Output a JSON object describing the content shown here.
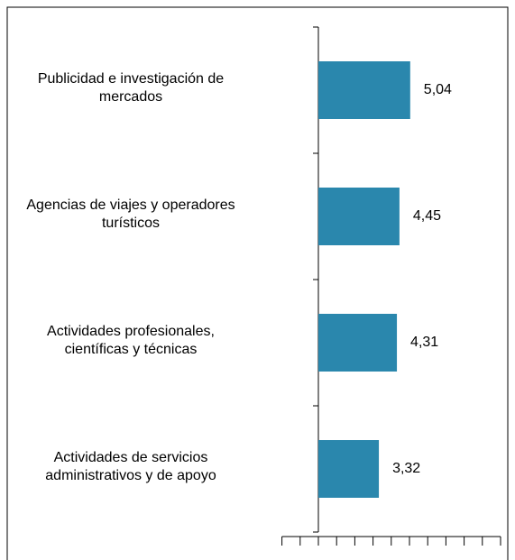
{
  "chart_data": {
    "type": "bar",
    "orientation": "horizontal",
    "categories": [
      "Publicidad e investigación de mercados",
      "Agencias de viajes y operadores turísticos",
      "Actividades profesionales, científicas y técnicas",
      "Actividades de servicios administrativos y de apoyo"
    ],
    "values": [
      5.04,
      4.45,
      4.31,
      3.32
    ],
    "value_labels": [
      "5,04",
      "4,45",
      "4,31",
      "3,32"
    ],
    "color": "#2a87ad",
    "xlim": [
      -2,
      10
    ],
    "xticks": [
      -2,
      -1,
      0,
      1,
      2,
      3,
      4,
      5,
      6,
      7,
      8,
      9,
      10
    ]
  }
}
